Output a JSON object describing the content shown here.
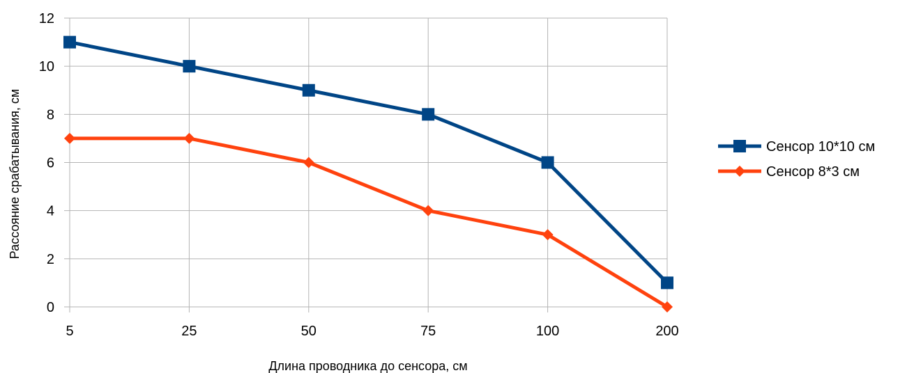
{
  "chart_data": {
    "type": "line",
    "title": "",
    "xlabel": "Длина проводника до сенсора, см",
    "ylabel": "Рассояние срабатывания, см",
    "categories": [
      "5",
      "25",
      "50",
      "75",
      "100",
      "200"
    ],
    "ylim": [
      0,
      12
    ],
    "yticks": [
      0,
      2,
      4,
      6,
      8,
      10,
      12
    ],
    "grid": true,
    "legend_position": "right",
    "series": [
      {
        "name": "Сенсор 10*10 см",
        "values": [
          11,
          10,
          9,
          8,
          6,
          1
        ],
        "color": "#004586",
        "marker": "square"
      },
      {
        "name": "Сенсор 8*3 см",
        "values": [
          7,
          7,
          6,
          4,
          3,
          0
        ],
        "color": "#ff420e",
        "marker": "diamond"
      }
    ]
  }
}
